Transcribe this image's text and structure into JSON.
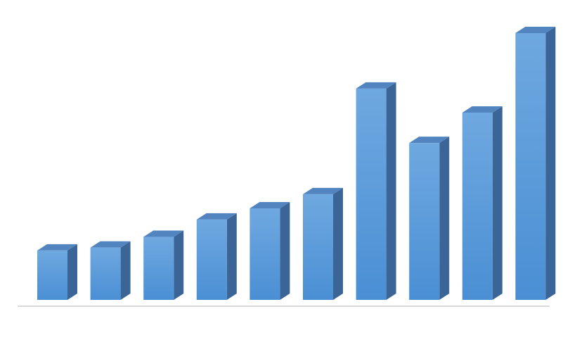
{
  "chart_data": {
    "type": "bar",
    "style": "3d-column",
    "title": "",
    "xlabel": "",
    "ylabel": "",
    "grid": false,
    "legend": "none",
    "ylim": [
      0,
      100
    ],
    "series": [
      {
        "values": [
          18.5,
          19.6,
          23.6,
          30.1,
          34.3,
          39.6,
          79.2,
          58.8,
          70.2,
          100
        ]
      }
    ],
    "colors": {
      "front_top": "#6fa8e0",
      "front_bottom": "#4a8fd4",
      "side": "#3a6596",
      "top": "#5284bf",
      "baseline": "#d9d9d9"
    }
  }
}
